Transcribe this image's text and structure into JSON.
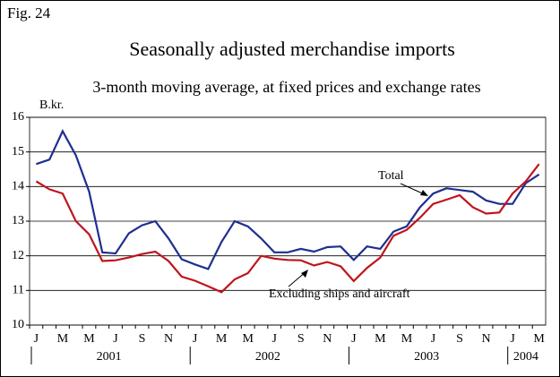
{
  "chart_data": {
    "type": "line",
    "figure_label": "Fig. 24",
    "title": "Seasonally adjusted merchandise imports",
    "subtitle": "3-month moving average, at fixed prices and exchange rates",
    "y_unit": "B.kr.",
    "categories": [
      "J",
      null,
      "M",
      null,
      "M",
      null,
      "J",
      null,
      "S",
      null,
      "N",
      null,
      "J",
      null,
      "M",
      null,
      "M",
      null,
      "J",
      null,
      "S",
      null,
      "N",
      null,
      "J",
      null,
      "M",
      null,
      "M",
      null,
      "J",
      null,
      "S",
      null,
      "N",
      null,
      "J",
      null,
      "M"
    ],
    "years": [
      "2001",
      "2002",
      "2003",
      "2004"
    ],
    "series": [
      {
        "name": "Total",
        "color": "#1f2f8f",
        "values": [
          14.65,
          14.78,
          15.6,
          14.9,
          13.85,
          12.1,
          12.07,
          12.65,
          12.88,
          13.0,
          12.5,
          11.9,
          11.75,
          11.62,
          12.4,
          13.0,
          12.85,
          12.5,
          12.1,
          12.1,
          12.2,
          12.12,
          12.25,
          12.27,
          11.88,
          12.27,
          12.2,
          12.7,
          12.85,
          13.4,
          13.8,
          13.95,
          13.9,
          13.85,
          13.6,
          13.5,
          13.5,
          14.1,
          14.35
        ]
      },
      {
        "name": "Excluding ships and aircraft",
        "color": "#c0141c",
        "values": [
          14.15,
          13.92,
          13.8,
          13.0,
          12.62,
          11.85,
          11.87,
          11.95,
          12.05,
          12.12,
          11.85,
          11.4,
          11.28,
          11.12,
          10.95,
          11.32,
          11.5,
          12.0,
          11.92,
          11.88,
          11.87,
          11.72,
          11.82,
          11.7,
          11.27,
          11.65,
          11.95,
          12.58,
          12.75,
          13.1,
          13.5,
          13.62,
          13.75,
          13.4,
          13.22,
          13.25,
          13.8,
          14.15,
          14.65
        ]
      }
    ],
    "ylim": [
      10,
      16
    ],
    "yticks": [
      10,
      11,
      12,
      13,
      14,
      15,
      16
    ],
    "grid": true
  }
}
